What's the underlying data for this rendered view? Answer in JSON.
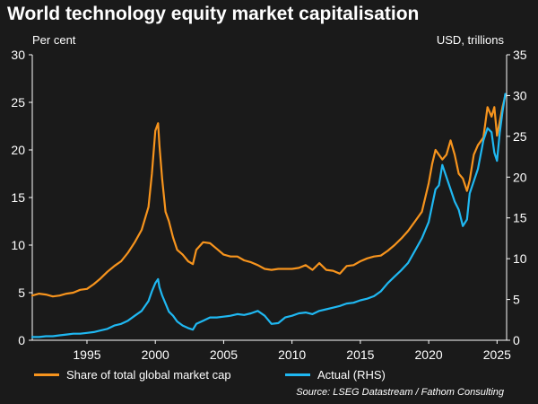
{
  "title": "World technology equity market capitalisation",
  "left_unit": "Per cent",
  "right_unit": "USD, trillions",
  "source": "Source: LSEG Datastream / Fathom Consulting",
  "chart_data": {
    "type": "line",
    "title": "World technology equity market capitalisation",
    "xlabel": "",
    "ylabel_left": "Per cent",
    "ylabel_right": "USD, trillions",
    "xlim": [
      1991,
      2025.7
    ],
    "ylim_left": [
      0,
      30
    ],
    "ylim_right": [
      0,
      35
    ],
    "x_ticks": [
      1995,
      2000,
      2005,
      2010,
      2015,
      2020,
      2025
    ],
    "y_ticks_left": [
      0,
      5,
      10,
      15,
      20,
      25,
      30
    ],
    "y_ticks_right": [
      0,
      5,
      10,
      15,
      20,
      25,
      30,
      35
    ],
    "grid": false,
    "legend_position": "bottom",
    "series": [
      {
        "name": "Share of total global market cap",
        "axis": "left",
        "color": "#f7941d",
        "x": [
          1991.0,
          1991.5,
          1992.0,
          1992.5,
          1993.0,
          1993.5,
          1994.0,
          1994.5,
          1995.0,
          1995.5,
          1996.0,
          1996.5,
          1997.0,
          1997.5,
          1998.0,
          1998.5,
          1999.0,
          1999.5,
          1999.75,
          2000.0,
          2000.2,
          2000.3,
          2000.5,
          2000.75,
          2001.0,
          2001.3,
          2001.6,
          2002.0,
          2002.4,
          2002.75,
          2003.0,
          2003.5,
          2004.0,
          2004.5,
          2005.0,
          2005.5,
          2006.0,
          2006.5,
          2007.0,
          2007.5,
          2008.0,
          2008.5,
          2009.0,
          2009.5,
          2010.0,
          2010.5,
          2011.0,
          2011.5,
          2012.0,
          2012.5,
          2013.0,
          2013.5,
          2014.0,
          2014.5,
          2015.0,
          2015.5,
          2016.0,
          2016.5,
          2017.0,
          2017.5,
          2018.0,
          2018.5,
          2019.0,
          2019.5,
          2020.0,
          2020.25,
          2020.5,
          2020.75,
          2021.0,
          2021.3,
          2021.6,
          2021.9,
          2022.2,
          2022.5,
          2022.8,
          2023.0,
          2023.3,
          2023.6,
          2024.0,
          2024.3,
          2024.6,
          2024.8,
          2025.0,
          2025.2,
          2025.4,
          2025.6
        ],
        "values": [
          4.7,
          4.9,
          4.8,
          4.6,
          4.7,
          4.9,
          5.0,
          5.3,
          5.4,
          5.9,
          6.5,
          7.2,
          7.8,
          8.3,
          9.2,
          10.3,
          11.6,
          14.0,
          17.5,
          22.0,
          22.8,
          20.5,
          17.0,
          13.5,
          12.5,
          10.8,
          9.5,
          9.0,
          8.3,
          8.0,
          9.5,
          10.3,
          10.2,
          9.6,
          9.0,
          8.8,
          8.8,
          8.4,
          8.2,
          7.9,
          7.5,
          7.4,
          7.5,
          7.5,
          7.5,
          7.6,
          7.9,
          7.4,
          8.1,
          7.4,
          7.3,
          7.0,
          7.8,
          7.9,
          8.3,
          8.6,
          8.8,
          8.9,
          9.4,
          10.0,
          10.7,
          11.5,
          12.5,
          13.5,
          16.5,
          18.5,
          20.0,
          19.5,
          19.0,
          19.5,
          21.0,
          19.5,
          17.5,
          17.0,
          15.7,
          16.8,
          19.5,
          20.5,
          21.3,
          24.5,
          23.5,
          24.5,
          21.5,
          23.0,
          24.5,
          25.7
        ]
      },
      {
        "name": "Actual (RHS)",
        "axis": "right",
        "color": "#1fb8f2",
        "x": [
          1991.0,
          1991.5,
          1992.0,
          1992.5,
          1993.0,
          1993.5,
          1994.0,
          1994.5,
          1995.0,
          1995.5,
          1996.0,
          1996.5,
          1997.0,
          1997.5,
          1998.0,
          1998.5,
          1999.0,
          1999.5,
          1999.75,
          2000.0,
          2000.2,
          2000.3,
          2000.5,
          2000.75,
          2001.0,
          2001.3,
          2001.6,
          2002.0,
          2002.4,
          2002.75,
          2003.0,
          2003.5,
          2004.0,
          2004.5,
          2005.0,
          2005.5,
          2006.0,
          2006.5,
          2007.0,
          2007.5,
          2008.0,
          2008.5,
          2009.0,
          2009.5,
          2010.0,
          2010.5,
          2011.0,
          2011.5,
          2012.0,
          2012.5,
          2013.0,
          2013.5,
          2014.0,
          2014.5,
          2015.0,
          2015.5,
          2016.0,
          2016.5,
          2017.0,
          2017.5,
          2018.0,
          2018.5,
          2019.0,
          2019.5,
          2020.0,
          2020.25,
          2020.5,
          2020.75,
          2021.0,
          2021.3,
          2021.6,
          2021.9,
          2022.2,
          2022.5,
          2022.8,
          2023.0,
          2023.3,
          2023.6,
          2024.0,
          2024.3,
          2024.6,
          2024.8,
          2025.0,
          2025.2,
          2025.4,
          2025.6
        ],
        "values": [
          0.4,
          0.4,
          0.5,
          0.5,
          0.6,
          0.7,
          0.8,
          0.8,
          0.9,
          1.0,
          1.2,
          1.4,
          1.8,
          2.0,
          2.4,
          3.0,
          3.6,
          4.8,
          6.0,
          7.0,
          7.5,
          6.5,
          5.5,
          4.5,
          3.5,
          3.0,
          2.3,
          1.8,
          1.5,
          1.3,
          2.0,
          2.4,
          2.8,
          2.8,
          2.9,
          3.0,
          3.2,
          3.1,
          3.3,
          3.6,
          3.0,
          2.0,
          2.1,
          2.8,
          3.0,
          3.3,
          3.4,
          3.2,
          3.6,
          3.8,
          4.0,
          4.2,
          4.5,
          4.6,
          4.9,
          5.1,
          5.4,
          6.0,
          7.0,
          7.8,
          8.6,
          9.5,
          11.0,
          12.5,
          14.5,
          16.5,
          18.5,
          19.0,
          21.5,
          20.0,
          18.5,
          17.0,
          16.0,
          14.0,
          14.8,
          18.0,
          19.5,
          21.0,
          24.5,
          26.0,
          25.5,
          23.0,
          22.0,
          25.5,
          28.0,
          30.2
        ]
      }
    ]
  }
}
